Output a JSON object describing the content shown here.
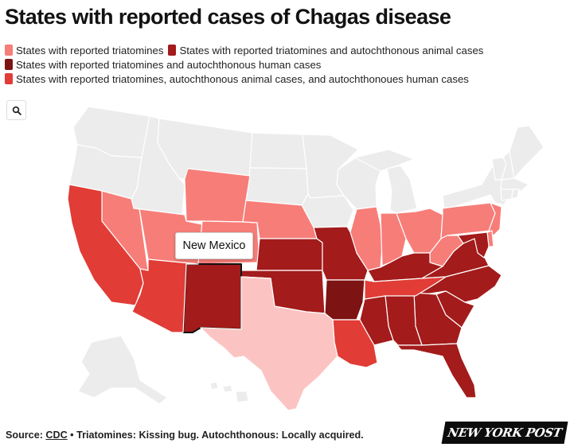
{
  "title": "States with reported cases of Chagas disease",
  "colors": {
    "none": "#ececec",
    "triatomines": "#f77d78",
    "triatomines_animal": "#a31b1b",
    "triatomines_human": "#7e1313",
    "triatomines_animal_human": "#e13c36",
    "texas": "#fbc4c2",
    "border": "#ffffff"
  },
  "legend": [
    {
      "label": "States with reported triatomines",
      "color": "#f77d78"
    },
    {
      "label": "States with reported triatomines and autochthonous animal cases",
      "color": "#a31b1b"
    },
    {
      "label": "States with reported triatomines and autochthonous human cases",
      "color": "#7e1313"
    },
    {
      "label": "States with reported triatomines, autochthonous animal cases, and autochthonoues human cases",
      "color": "#e13c36"
    }
  ],
  "search": {
    "icon": "search-icon"
  },
  "tooltip": {
    "label": "New Mexico"
  },
  "states": {
    "triatomines": [
      "Nevada",
      "Utah",
      "Wyoming",
      "Colorado",
      "Nebraska",
      "Illinois",
      "Indiana",
      "Ohio",
      "West Virginia",
      "Pennsylvania",
      "New Jersey",
      "Delaware"
    ],
    "triatomines_animal": [
      "New Mexico",
      "Kansas",
      "Oklahoma",
      "Missouri",
      "Kentucky",
      "Virginia",
      "Maryland",
      "North Carolina",
      "South Carolina",
      "Georgia",
      "Alabama",
      "Mississippi",
      "Florida"
    ],
    "triatomines_human": [
      "Arkansas"
    ],
    "triatomines_animal_human": [
      "California",
      "Arizona",
      "Tennessee",
      "Louisiana"
    ],
    "texas": [
      "Texas"
    ]
  },
  "footer": {
    "source_prefix": "Source: ",
    "source_link": "CDC",
    "note": " • Triatomines: Kissing bug. Autochthonous: Locally acquired."
  },
  "brand": {
    "logo_text": "NEW YORK POST"
  }
}
